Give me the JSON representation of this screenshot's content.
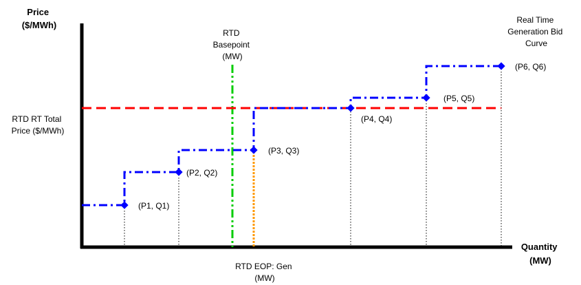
{
  "axes": {
    "y_title_line1": "Price",
    "y_title_line2": "($/MWh)",
    "x_title_line1": "Quantity",
    "x_title_line2": "(MW)"
  },
  "labels": {
    "bid_curve": [
      "Real Time",
      "Generation Bid",
      "Curve"
    ],
    "basepoint": [
      "RTD",
      "Basepoint",
      "(MW)"
    ],
    "rt_price": [
      "RTD RT Total",
      "Price ($/MWh)"
    ],
    "eop": [
      "RTD EOP: Gen",
      "(MW)"
    ]
  },
  "points": [
    {
      "label": "(P1, Q1)"
    },
    {
      "label": "(P2, Q2)"
    },
    {
      "label": "(P3, Q3)"
    },
    {
      "label": "(P4, Q4)"
    },
    {
      "label": "(P5, Q5)"
    },
    {
      "label": "(P6, Q6)"
    }
  ],
  "colors": {
    "bid_curve": "#0000ff",
    "rt_price": "#ff0000",
    "basepoint": "#00cc00",
    "eop": "#ff9900",
    "axis": "#000000"
  }
}
